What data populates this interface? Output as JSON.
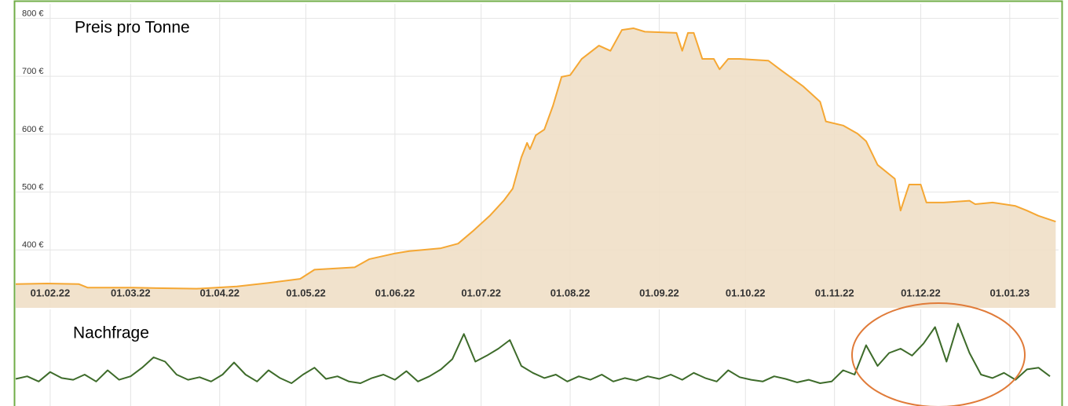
{
  "chart_data": [
    {
      "type": "area",
      "title": "Preis pro Tonne",
      "color": "#f5a733",
      "fill": "#f0dfc6",
      "grid": true,
      "x": [
        "2022-01-20",
        "2022-01-31",
        "2022-02-11",
        "2022-02-14",
        "2022-03-02",
        "2022-03-10",
        "2022-03-24",
        "2022-04-07",
        "2022-04-18",
        "2022-04-29",
        "2022-05-04",
        "2022-05-18",
        "2022-05-23",
        "2022-06-01",
        "2022-06-06",
        "2022-06-17",
        "2022-06-23",
        "2022-06-28",
        "2022-07-04",
        "2022-07-09",
        "2022-07-12",
        "2022-07-15",
        "2022-07-17",
        "2022-07-18",
        "2022-07-20",
        "2022-07-23",
        "2022-07-26",
        "2022-07-29",
        "2022-08-01",
        "2022-08-05",
        "2022-08-11",
        "2022-08-15",
        "2022-08-19",
        "2022-08-23",
        "2022-08-27",
        "2022-09-07",
        "2022-09-09",
        "2022-09-11",
        "2022-09-13",
        "2022-09-16",
        "2022-09-20",
        "2022-09-22",
        "2022-09-25",
        "2022-09-29",
        "2022-10-09",
        "2022-10-13",
        "2022-10-21",
        "2022-10-27",
        "2022-10-29",
        "2022-11-04",
        "2022-11-09",
        "2022-11-12",
        "2022-11-16",
        "2022-11-22",
        "2022-11-24",
        "2022-11-27",
        "2022-12-01",
        "2022-12-03",
        "2022-12-09",
        "2022-12-18",
        "2022-12-20",
        "2022-12-26",
        "2023-01-03",
        "2023-01-07",
        "2023-01-11",
        "2023-01-17"
      ],
      "values": [
        341,
        342,
        341,
        335,
        335,
        334,
        333,
        337,
        343,
        350,
        366,
        370,
        384,
        394,
        398,
        403,
        411,
        432,
        459,
        486,
        506,
        560,
        585,
        574,
        598,
        608,
        649,
        699,
        702,
        730,
        753,
        744,
        780,
        783,
        777,
        775,
        744,
        775,
        775,
        730,
        730,
        712,
        730,
        730,
        727,
        712,
        683,
        656,
        622,
        615,
        601,
        588,
        547,
        523,
        468,
        513,
        513,
        482,
        482,
        485,
        479,
        482,
        476,
        468,
        459,
        449
      ],
      "xlim": [
        "2022-01-20",
        "2023-01-18"
      ],
      "xticks": [
        {
          "value": "2022-02-01",
          "label": "01.02.22"
        },
        {
          "value": "2022-03-01",
          "label": "01.03.22"
        },
        {
          "value": "2022-04-01",
          "label": "01.04.22"
        },
        {
          "value": "2022-05-01",
          "label": "01.05.22"
        },
        {
          "value": "2022-06-01",
          "label": "01.06.22"
        },
        {
          "value": "2022-07-01",
          "label": "01.07.22"
        },
        {
          "value": "2022-08-01",
          "label": "01.08.22"
        },
        {
          "value": "2022-09-01",
          "label": "01.09.22"
        },
        {
          "value": "2022-10-01",
          "label": "01.10.22"
        },
        {
          "value": "2022-11-01",
          "label": "01.11.22"
        },
        {
          "value": "2022-12-01",
          "label": "01.12.22"
        },
        {
          "value": "2023-01-01",
          "label": "01.01.23"
        }
      ],
      "ylim": [
        300,
        825
      ],
      "yticks": [
        {
          "value": 400,
          "label": "400 €"
        },
        {
          "value": 500,
          "label": "500 €"
        },
        {
          "value": 600,
          "label": "600 €"
        },
        {
          "value": 700,
          "label": "700 €"
        },
        {
          "value": 800,
          "label": "800 €"
        }
      ]
    },
    {
      "type": "line",
      "title": "Nachfrage",
      "color": "#3d6b2a",
      "x": [
        "2022-01-20",
        "2022-01-24",
        "2022-01-28",
        "2022-02-01",
        "2022-02-05",
        "2022-02-09",
        "2022-02-13",
        "2022-02-17",
        "2022-02-21",
        "2022-02-25",
        "2022-03-01",
        "2022-03-05",
        "2022-03-09",
        "2022-03-13",
        "2022-03-17",
        "2022-03-21",
        "2022-03-25",
        "2022-03-29",
        "2022-04-02",
        "2022-04-06",
        "2022-04-10",
        "2022-04-14",
        "2022-04-18",
        "2022-04-22",
        "2022-04-26",
        "2022-04-30",
        "2022-05-04",
        "2022-05-08",
        "2022-05-12",
        "2022-05-16",
        "2022-05-20",
        "2022-05-24",
        "2022-05-28",
        "2022-06-01",
        "2022-06-05",
        "2022-06-09",
        "2022-06-13",
        "2022-06-17",
        "2022-06-21",
        "2022-06-25",
        "2022-06-29",
        "2022-07-03",
        "2022-07-07",
        "2022-07-11",
        "2022-07-15",
        "2022-07-19",
        "2022-07-23",
        "2022-07-27",
        "2022-07-31",
        "2022-08-04",
        "2022-08-08",
        "2022-08-12",
        "2022-08-16",
        "2022-08-20",
        "2022-08-24",
        "2022-08-28",
        "2022-09-01",
        "2022-09-05",
        "2022-09-09",
        "2022-09-13",
        "2022-09-17",
        "2022-09-21",
        "2022-09-25",
        "2022-09-29",
        "2022-10-03",
        "2022-10-07",
        "2022-10-11",
        "2022-10-15",
        "2022-10-19",
        "2022-10-23",
        "2022-10-27",
        "2022-10-31",
        "2022-11-04",
        "2022-11-08",
        "2022-11-12",
        "2022-11-16",
        "2022-11-20",
        "2022-11-24",
        "2022-11-28",
        "2022-12-02",
        "2022-12-06",
        "2022-12-10",
        "2022-12-14",
        "2022-12-18",
        "2022-12-22",
        "2022-12-26",
        "2022-12-30",
        "2023-01-03",
        "2023-01-07",
        "2023-01-11",
        "2023-01-15"
      ],
      "values": [
        25,
        28,
        22,
        33,
        26,
        24,
        30,
        22,
        35,
        24,
        28,
        38,
        50,
        45,
        30,
        24,
        27,
        22,
        30,
        44,
        30,
        22,
        35,
        26,
        20,
        30,
        38,
        25,
        28,
        22,
        20,
        26,
        30,
        24,
        34,
        22,
        28,
        36,
        48,
        77,
        45,
        52,
        60,
        70,
        40,
        32,
        26,
        30,
        22,
        28,
        24,
        30,
        22,
        26,
        23,
        28,
        25,
        30,
        24,
        32,
        26,
        22,
        35,
        27,
        24,
        22,
        28,
        25,
        21,
        24,
        20,
        22,
        35,
        30,
        64,
        40,
        55,
        60,
        52,
        66,
        85,
        45,
        89,
        55,
        30,
        26,
        32,
        24,
        36,
        38,
        28
      ],
      "xlim": [
        "2022-01-20",
        "2023-01-18"
      ],
      "ylim": [
        0,
        100
      ]
    }
  ]
}
